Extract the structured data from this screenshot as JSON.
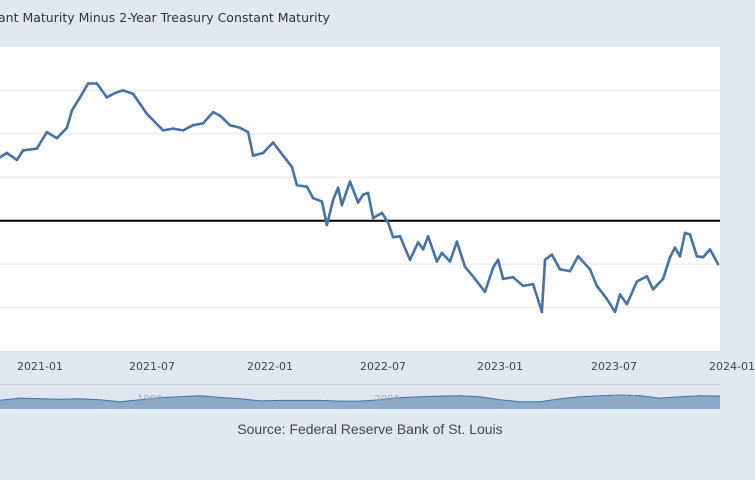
{
  "header": {
    "title": "ant Maturity Minus 2-Year Treasury Constant Maturity"
  },
  "chart_data": {
    "type": "line",
    "title": "ant Maturity Minus 2-Year Treasury Constant Maturity",
    "xlabel": "",
    "ylabel": "",
    "xlim": [
      "2020-10-29",
      "2023-12-25"
    ],
    "ylim": [
      -1.5,
      2.0
    ],
    "grid": true,
    "gridlines": [
      1.5,
      1.0,
      0.5,
      -0.5,
      -1.0
    ],
    "zero_line": 0,
    "x_tick_labels": [
      "2021-01",
      "2021-07",
      "2022-01",
      "2022-07",
      "2023-01",
      "2023-07",
      "2024-01"
    ],
    "series_color": "#4572a7",
    "x": [
      "2020-10-29",
      "2020-11-09",
      "2020-11-25",
      "2020-12-05",
      "2020-12-27",
      "2021-01-12",
      "2021-01-28",
      "2021-02-13",
      "2021-02-21",
      "2021-03-06",
      "2021-03-19",
      "2021-04-02",
      "2021-04-18",
      "2021-05-01",
      "2021-05-14",
      "2021-05-30",
      "2021-06-21",
      "2021-07-17",
      "2021-08-02",
      "2021-08-18",
      "2021-09-03",
      "2021-09-19",
      "2021-10-05",
      "2021-10-16",
      "2021-11-01",
      "2021-11-17",
      "2021-11-30",
      "2021-12-08",
      "2021-12-24",
      "2022-01-09",
      "2022-01-25",
      "2022-02-08",
      "2022-02-16",
      "2022-03-04",
      "2022-03-14",
      "2022-03-28",
      "2022-04-05",
      "2022-04-15",
      "2022-04-23",
      "2022-04-29",
      "2022-05-12",
      "2022-05-25",
      "2022-06-02",
      "2022-06-10",
      "2022-06-18",
      "2022-07-02",
      "2022-07-12",
      "2022-07-20",
      "2022-07-31",
      "2022-08-16",
      "2022-08-29",
      "2022-09-06",
      "2022-09-14",
      "2022-09-28",
      "2022-10-06",
      "2022-10-19",
      "2022-10-30",
      "2022-11-12",
      "2022-11-28",
      "2022-12-14",
      "2022-12-27",
      "2023-01-04",
      "2023-01-12",
      "2023-01-28",
      "2023-02-13",
      "2023-03-01",
      "2023-03-15",
      "2023-03-20",
      "2023-03-31",
      "2023-04-13",
      "2023-04-29",
      "2023-05-12",
      "2023-05-31",
      "2023-06-11",
      "2023-06-27",
      "2023-07-10",
      "2023-07-18",
      "2023-07-29",
      "2023-08-14",
      "2023-08-30",
      "2023-09-09",
      "2023-09-25",
      "2023-10-06",
      "2023-10-14",
      "2023-10-22",
      "2023-10-30",
      "2023-11-07",
      "2023-11-18",
      "2023-11-28",
      "2023-12-09",
      "2023-12-22"
    ],
    "y": [
      0.73,
      0.78,
      0.7,
      0.81,
      0.83,
      1.02,
      0.95,
      1.07,
      1.27,
      1.42,
      1.58,
      1.58,
      1.42,
      1.47,
      1.5,
      1.46,
      1.23,
      1.04,
      1.06,
      1.04,
      1.1,
      1.12,
      1.25,
      1.21,
      1.1,
      1.07,
      1.02,
      0.75,
      0.78,
      0.9,
      0.75,
      0.62,
      0.41,
      0.39,
      0.26,
      0.22,
      -0.05,
      0.24,
      0.38,
      0.18,
      0.45,
      0.21,
      0.3,
      0.32,
      0.03,
      0.09,
      -0.02,
      -0.19,
      -0.18,
      -0.45,
      -0.25,
      -0.33,
      -0.18,
      -0.47,
      -0.37,
      -0.47,
      -0.24,
      -0.53,
      -0.67,
      -0.82,
      -0.54,
      -0.45,
      -0.67,
      -0.65,
      -0.75,
      -0.73,
      -1.05,
      -0.45,
      -0.39,
      -0.56,
      -0.58,
      -0.41,
      -0.56,
      -0.75,
      -0.9,
      -1.05,
      -0.85,
      -0.96,
      -0.7,
      -0.64,
      -0.79,
      -0.67,
      -0.42,
      -0.31,
      -0.41,
      -0.14,
      -0.16,
      -0.41,
      -0.42,
      -0.33,
      -0.5
    ]
  },
  "navigator": {
    "fill_color": "#8eaacb",
    "line_color": "#4572a7",
    "labels": [
      "1990",
      "2000",
      "2010"
    ],
    "levels": [
      0.56,
      0.71,
      0.66,
      0.62,
      0.66,
      0.59,
      0.44,
      0.59,
      0.74,
      0.81,
      0.88,
      0.76,
      0.66,
      0.51,
      0.54,
      0.54,
      0.54,
      0.49,
      0.49,
      0.59,
      0.74,
      0.81,
      0.85,
      0.88,
      0.81,
      0.59,
      0.44,
      0.44,
      0.66,
      0.81,
      0.88,
      0.93,
      0.88,
      0.71,
      0.81,
      0.88,
      0.85
    ]
  },
  "footer": {
    "source": "Source: Federal Reserve Bank of St. Louis"
  }
}
